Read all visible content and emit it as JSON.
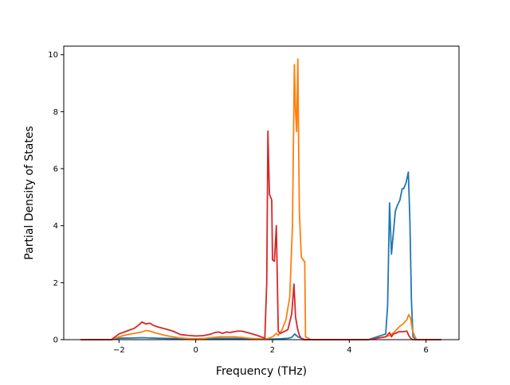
{
  "chart_data": {
    "type": "line",
    "title": "",
    "xlabel": "Frequency (THz)",
    "ylabel": "Partial Density of States",
    "xlim": [
      -3.44,
      6.86
    ],
    "ylim": [
      0,
      10.3
    ],
    "xticks": [
      -2,
      0,
      2,
      4,
      6
    ],
    "xtick_labels": [
      "−2",
      "0",
      "2",
      "4",
      "6"
    ],
    "yticks": [
      0,
      2,
      4,
      6,
      8,
      10
    ],
    "ytick_labels": [
      "0",
      "2",
      "4",
      "6",
      "8",
      "10"
    ],
    "grid": false,
    "legend": "none",
    "series": [
      {
        "color": "#1f77b4",
        "x": [
          -3.0,
          -2.2,
          -2.0,
          -1.6,
          -1.4,
          -1.2,
          -1.0,
          -0.6,
          -0.2,
          0.2,
          0.6,
          1.0,
          1.4,
          1.8,
          1.9,
          2.0,
          2.2,
          2.4,
          2.5,
          2.58,
          2.66,
          2.75,
          2.85,
          3.5,
          4.5,
          4.95,
          5.0,
          5.05,
          5.1,
          5.14,
          5.2,
          5.25,
          5.32,
          5.38,
          5.42,
          5.48,
          5.54,
          5.58,
          5.6,
          5.62,
          5.66,
          5.75,
          6.0,
          6.4
        ],
        "y": [
          0,
          0,
          0.05,
          0.06,
          0.07,
          0.06,
          0.05,
          0.04,
          0.03,
          0.03,
          0.04,
          0.04,
          0.03,
          0.02,
          0.02,
          0.02,
          0.03,
          0.05,
          0.08,
          0.2,
          0.1,
          0.05,
          0,
          0,
          0,
          0.2,
          1.2,
          4.8,
          3.0,
          3.6,
          4.5,
          4.7,
          4.9,
          5.3,
          5.3,
          5.5,
          5.88,
          4.2,
          2.8,
          1.4,
          0.1,
          0,
          0,
          0
        ]
      },
      {
        "color": "#ff7f0e",
        "x": [
          -3.0,
          -2.2,
          -2.0,
          -1.8,
          -1.6,
          -1.4,
          -1.3,
          -1.2,
          -1.0,
          -0.8,
          -0.6,
          -0.4,
          -0.2,
          0.0,
          0.2,
          0.4,
          0.6,
          0.8,
          1.0,
          1.2,
          1.4,
          1.6,
          1.8,
          1.9,
          2.0,
          2.1,
          2.15,
          2.25,
          2.35,
          2.45,
          2.52,
          2.57,
          2.6,
          2.63,
          2.66,
          2.68,
          2.7,
          2.75,
          2.8,
          2.82,
          2.84,
          2.86,
          3.0,
          3.5,
          4.5,
          4.95,
          5.05,
          5.1,
          5.2,
          5.3,
          5.4,
          5.5,
          5.55,
          5.6,
          5.65,
          5.75,
          6.0,
          6.4
        ],
        "y": [
          0,
          0,
          0.1,
          0.17,
          0.22,
          0.27,
          0.32,
          0.3,
          0.22,
          0.15,
          0.1,
          0.06,
          0.04,
          0.03,
          0.04,
          0.07,
          0.1,
          0.1,
          0.1,
          0.08,
          0.05,
          0.03,
          0.02,
          0.05,
          0.1,
          0.22,
          0.15,
          0.35,
          0.7,
          1.5,
          4.0,
          9.65,
          8.0,
          7.3,
          9.85,
          7.0,
          4.5,
          2.9,
          2.8,
          2.75,
          2.75,
          0.1,
          0,
          0,
          0,
          0.1,
          0.15,
          0.18,
          0.3,
          0.45,
          0.55,
          0.7,
          0.88,
          0.75,
          0.3,
          0,
          0,
          0
        ]
      },
      {
        "color": "#d62728",
        "x": [
          -3.0,
          -2.2,
          -2.0,
          -1.8,
          -1.6,
          -1.5,
          -1.4,
          -1.3,
          -1.2,
          -1.1,
          -1.0,
          -0.8,
          -0.6,
          -0.4,
          -0.2,
          0.0,
          0.2,
          0.4,
          0.5,
          0.6,
          0.7,
          0.8,
          0.9,
          1.0,
          1.1,
          1.2,
          1.4,
          1.6,
          1.8,
          1.85,
          1.88,
          1.92,
          1.98,
          2.0,
          2.05,
          2.1,
          2.15,
          2.2,
          2.3,
          2.4,
          2.5,
          2.56,
          2.6,
          2.65,
          2.7,
          2.75,
          2.8,
          2.9,
          3.5,
          4.5,
          4.95,
          5.05,
          5.1,
          5.15,
          5.2,
          5.3,
          5.4,
          5.5,
          5.55,
          5.6,
          5.65,
          5.75,
          6.0,
          6.4
        ],
        "y": [
          0,
          0,
          0.2,
          0.3,
          0.4,
          0.5,
          0.62,
          0.55,
          0.58,
          0.5,
          0.45,
          0.38,
          0.3,
          0.18,
          0.15,
          0.13,
          0.14,
          0.2,
          0.25,
          0.27,
          0.22,
          0.27,
          0.25,
          0.28,
          0.3,
          0.3,
          0.23,
          0.15,
          0.05,
          2.0,
          7.32,
          5.1,
          4.9,
          2.8,
          2.75,
          4.0,
          0.3,
          0.22,
          0.28,
          0.35,
          0.9,
          1.95,
          0.8,
          0.4,
          0.15,
          0.05,
          0,
          0,
          0,
          0,
          0.1,
          0.25,
          0.1,
          0.2,
          0.22,
          0.28,
          0.28,
          0.3,
          0.15,
          0.05,
          0,
          0,
          0,
          0
        ]
      }
    ]
  }
}
